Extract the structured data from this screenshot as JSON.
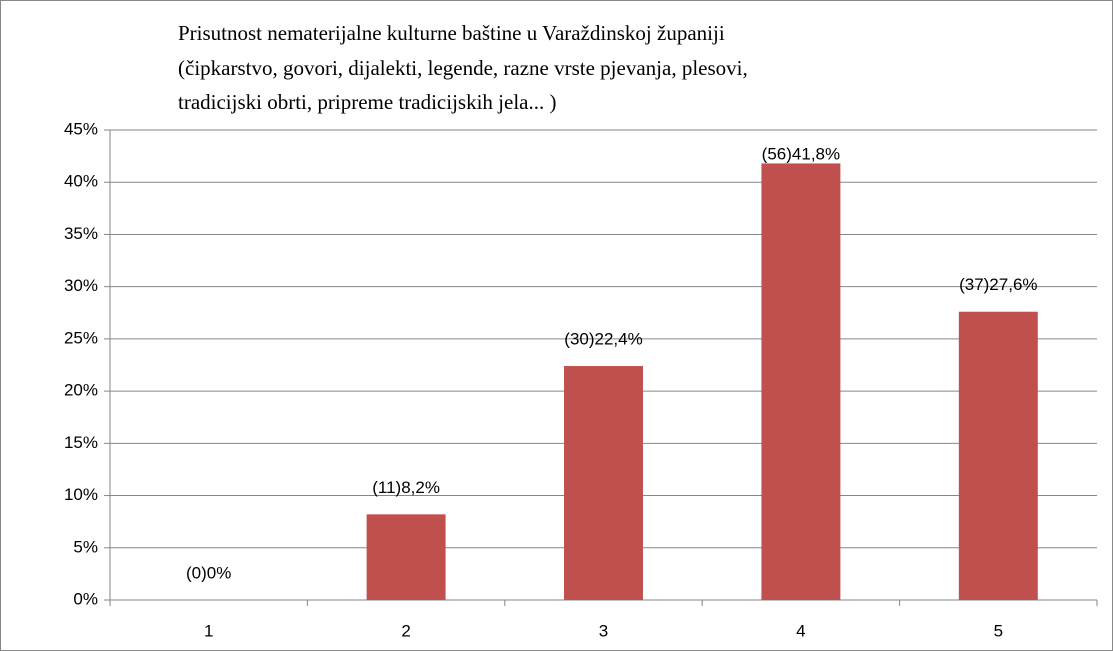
{
  "chart_data": {
    "type": "bar",
    "title": [
      "Prisutnost nematerijalne kulturne baštine u Varaždinskoj županiji",
      "(čipkarstvo, govori, dijalekti, legende, razne vrste pjevanja, plesovi,",
      "tradicijski obrti, pripreme tradicijskih jela... )"
    ],
    "categories": [
      "1",
      "2",
      "3",
      "4",
      "5"
    ],
    "values": [
      0,
      8.2,
      22.4,
      41.8,
      27.6
    ],
    "value_labels": [
      "(0)0%",
      "(11)8,2%",
      "(30)22,4%",
      "(56)41,8%",
      "(37)27,6%"
    ],
    "color": "#c0504d",
    "ylim": [
      0,
      45
    ],
    "yticks": [
      {
        "value": 0,
        "label": "0%"
      },
      {
        "value": 5,
        "label": "5%"
      },
      {
        "value": 10,
        "label": "10%"
      },
      {
        "value": 15,
        "label": "15%"
      },
      {
        "value": 20,
        "label": "20%"
      },
      {
        "value": 25,
        "label": "25%"
      },
      {
        "value": 30,
        "label": "30%"
      },
      {
        "value": 35,
        "label": "35%"
      },
      {
        "value": 40,
        "label": "40%"
      },
      {
        "value": 45,
        "label": "45%"
      }
    ],
    "grid": true
  }
}
